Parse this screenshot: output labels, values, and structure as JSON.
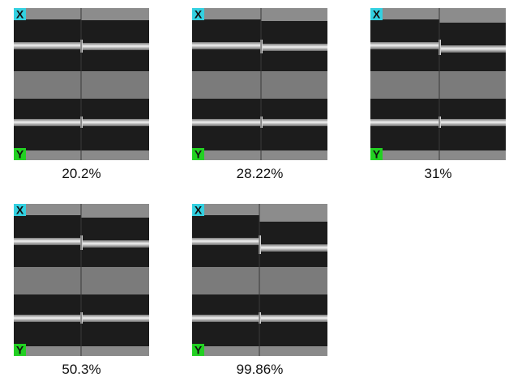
{
  "panels": [
    {
      "top_badge": "X",
      "bottom_badge": "Y",
      "caption": "20.2%"
    },
    {
      "top_badge": "X",
      "bottom_badge": "Y",
      "caption": "28.22%"
    },
    {
      "top_badge": "X",
      "bottom_badge": "Y",
      "caption": "31%"
    },
    {
      "top_badge": "X",
      "bottom_badge": "Y",
      "caption": "50.3%"
    },
    {
      "top_badge": "X",
      "bottom_badge": "Y",
      "caption": "99.86%"
    }
  ]
}
